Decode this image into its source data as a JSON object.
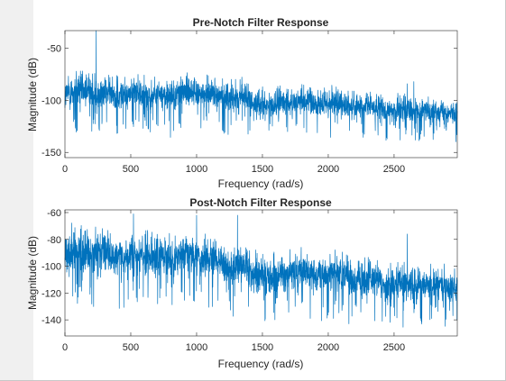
{
  "chart_data": [
    {
      "type": "line",
      "title": "Pre-Notch Filter Response",
      "xlabel": "Frequency (rad/s)",
      "ylabel": "Magnitude (dB)",
      "xlim": [
        0,
        2980
      ],
      "ylim": [
        -155,
        -33
      ],
      "xticks": [
        0,
        500,
        1000,
        1500,
        2000,
        2500
      ],
      "yticks": [
        -150,
        -100,
        -50
      ],
      "grid": false,
      "series_color": "#0072bd",
      "envelope": {
        "x": [
          0,
          50,
          100,
          150,
          200,
          250,
          300,
          350,
          400,
          450,
          500,
          550,
          600,
          650,
          700,
          750,
          800,
          850,
          900,
          950,
          1000,
          1050,
          1100,
          1150,
          1200,
          1250,
          1300,
          1350,
          1400,
          1450,
          1500,
          1550,
          1600,
          1650,
          1700,
          1750,
          1800,
          1850,
          1900,
          1950,
          2000,
          2050,
          2100,
          2150,
          2200,
          2250,
          2300,
          2350,
          2400,
          2450,
          2500,
          2550,
          2600,
          2650,
          2700,
          2750,
          2800,
          2850,
          2900,
          2950,
          2980
        ],
        "base": [
          -95,
          -92,
          -90,
          -92,
          -93,
          -95,
          -92,
          -94,
          -95,
          -96,
          -93,
          -92,
          -96,
          -95,
          -93,
          -95,
          -97,
          -95,
          -93,
          -92,
          -93,
          -95,
          -94,
          -94,
          -96,
          -98,
          -99,
          -96,
          -100,
          -104,
          -103,
          -104,
          -103,
          -102,
          -101,
          -103,
          -100,
          -102,
          -104,
          -103,
          -104,
          -102,
          -104,
          -106,
          -106,
          -108,
          -106,
          -107,
          -108,
          -110,
          -110,
          -108,
          -110,
          -111,
          -111,
          -110,
          -112,
          -109,
          -112,
          -112,
          -114
        ],
        "spread": [
          18,
          20,
          18,
          18,
          17,
          19,
          17,
          17,
          18,
          17,
          16,
          16,
          18,
          17,
          16,
          17,
          18,
          17,
          17,
          17,
          16,
          17,
          16,
          16,
          16,
          17,
          16,
          16,
          15,
          16,
          15,
          15,
          15,
          16,
          15,
          15,
          15,
          15,
          15,
          16,
          15,
          15,
          14,
          14,
          14,
          14,
          14,
          14,
          14,
          14,
          13,
          14,
          14,
          13,
          13,
          13,
          13,
          14,
          13,
          13,
          13
        ]
      },
      "peaks": [
        {
          "x": 237,
          "y": -33
        },
        {
          "x": 1330,
          "y": -80
        },
        {
          "x": 2600,
          "y": -84
        },
        {
          "x": 2650,
          "y": -82
        }
      ]
    },
    {
      "type": "line",
      "title": "Post-Notch Filter Response",
      "xlabel": "Frequency (rad/s)",
      "ylabel": "Magnitude (dB)",
      "xlim": [
        0,
        2980
      ],
      "ylim": [
        -152,
        -58
      ],
      "xticks": [
        0,
        500,
        1000,
        1500,
        2000,
        2500
      ],
      "yticks": [
        -140,
        -120,
        -100,
        -80,
        -60
      ],
      "grid": false,
      "series_color": "#0072bd",
      "envelope": {
        "x": [
          0,
          50,
          100,
          150,
          200,
          250,
          300,
          350,
          400,
          450,
          500,
          550,
          600,
          650,
          700,
          750,
          800,
          850,
          900,
          950,
          1000,
          1050,
          1100,
          1150,
          1200,
          1250,
          1300,
          1350,
          1400,
          1450,
          1500,
          1550,
          1600,
          1650,
          1700,
          1750,
          1800,
          1850,
          1900,
          1950,
          2000,
          2050,
          2100,
          2150,
          2200,
          2250,
          2300,
          2350,
          2400,
          2450,
          2500,
          2550,
          2600,
          2650,
          2700,
          2750,
          2800,
          2850,
          2900,
          2950,
          2980
        ],
        "base": [
          -92,
          -90,
          -88,
          -90,
          -90,
          -94,
          -90,
          -92,
          -92,
          -95,
          -92,
          -92,
          -95,
          -94,
          -92,
          -92,
          -95,
          -93,
          -90,
          -89,
          -92,
          -95,
          -94,
          -95,
          -98,
          -102,
          -100,
          -98,
          -102,
          -108,
          -106,
          -108,
          -106,
          -105,
          -104,
          -106,
          -103,
          -105,
          -108,
          -106,
          -107,
          -104,
          -106,
          -110,
          -110,
          -112,
          -110,
          -110,
          -112,
          -115,
          -115,
          -112,
          -114,
          -114,
          -114,
          -114,
          -116,
          -113,
          -116,
          -116,
          -116
        ],
        "spread": [
          18,
          20,
          19,
          19,
          18,
          19,
          18,
          18,
          18,
          18,
          17,
          18,
          18,
          18,
          17,
          18,
          18,
          17,
          18,
          18,
          17,
          17,
          17,
          17,
          17,
          17,
          17,
          17,
          16,
          17,
          16,
          16,
          16,
          16,
          16,
          16,
          16,
          16,
          16,
          16,
          16,
          16,
          15,
          15,
          15,
          15,
          15,
          15,
          15,
          15,
          15,
          15,
          15,
          15,
          14,
          14,
          14,
          14,
          14,
          14,
          14
        ]
      },
      "peaks": [
        {
          "x": 520,
          "y": -61
        },
        {
          "x": 1000,
          "y": -62
        },
        {
          "x": 1310,
          "y": -62
        },
        {
          "x": 2600,
          "y": -76
        }
      ]
    }
  ]
}
